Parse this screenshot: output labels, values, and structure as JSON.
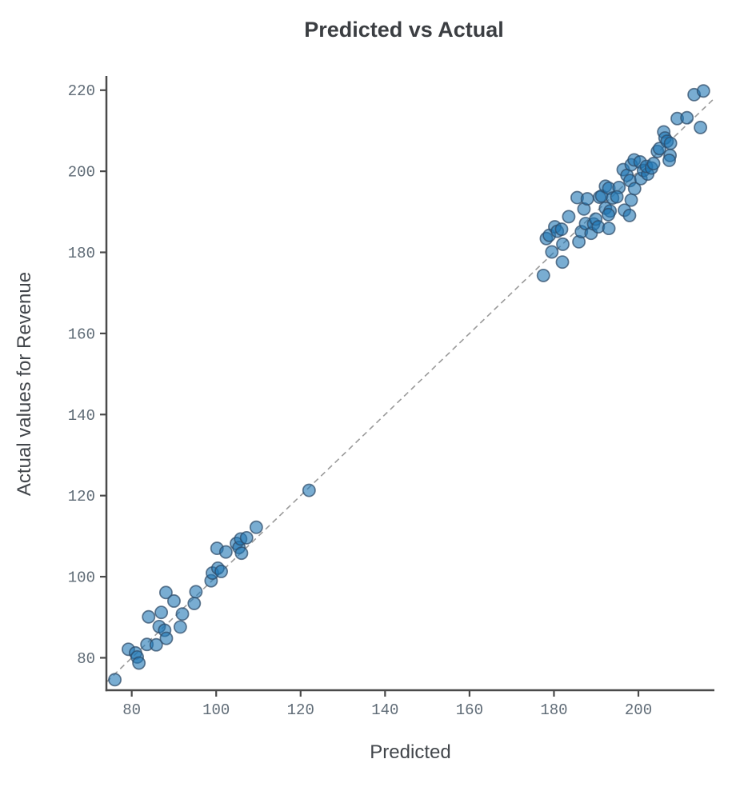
{
  "chart_data": {
    "type": "scatter",
    "title": "Predicted vs Actual",
    "xlabel": "Predicted",
    "ylabel": "Actual values for Revenue",
    "xlim": [
      74,
      218
    ],
    "ylim": [
      72,
      223.5
    ],
    "xticks": [
      80,
      100,
      120,
      140,
      160,
      180,
      200
    ],
    "yticks": [
      80,
      100,
      120,
      140,
      160,
      180,
      200,
      220
    ],
    "grid": false,
    "legend_position": "none",
    "identity_line": {
      "x1": 74,
      "y1": 74,
      "x2": 217.6,
      "y2": 217.6,
      "style": "dashed"
    },
    "points": [
      [
        76.0,
        74.6
      ],
      [
        79.2,
        82.1
      ],
      [
        80.9,
        81.2
      ],
      [
        81.3,
        80.2
      ],
      [
        81.7,
        78.7
      ],
      [
        83.6,
        83.3
      ],
      [
        84.0,
        90.1
      ],
      [
        85.8,
        83.2
      ],
      [
        86.5,
        87.7
      ],
      [
        87.8,
        86.8
      ],
      [
        87.0,
        91.2
      ],
      [
        88.2,
        84.8
      ],
      [
        88.1,
        96.1
      ],
      [
        90.0,
        94.0
      ],
      [
        91.5,
        87.6
      ],
      [
        92.0,
        90.8
      ],
      [
        94.8,
        93.4
      ],
      [
        95.2,
        96.3
      ],
      [
        98.8,
        99.0
      ],
      [
        99.1,
        100.9
      ],
      [
        100.2,
        107.0
      ],
      [
        100.4,
        102.1
      ],
      [
        101.2,
        101.3
      ],
      [
        102.3,
        106.1
      ],
      [
        104.8,
        108.2
      ],
      [
        105.4,
        107.2
      ],
      [
        106.0,
        105.8
      ],
      [
        105.8,
        109.3
      ],
      [
        107.2,
        109.6
      ],
      [
        109.5,
        112.2
      ],
      [
        122.0,
        121.3
      ],
      [
        177.5,
        174.3
      ],
      [
        178.2,
        183.4
      ],
      [
        178.9,
        184.2
      ],
      [
        179.5,
        180.1
      ],
      [
        180.2,
        186.3
      ],
      [
        180.8,
        185.2
      ],
      [
        181.8,
        185.7
      ],
      [
        182.1,
        182.0
      ],
      [
        182.0,
        177.6
      ],
      [
        183.5,
        188.8
      ],
      [
        185.5,
        193.5
      ],
      [
        185.9,
        182.6
      ],
      [
        186.5,
        185.1
      ],
      [
        187.1,
        190.7
      ],
      [
        187.5,
        187.1
      ],
      [
        187.9,
        193.2
      ],
      [
        188.8,
        184.7
      ],
      [
        189.4,
        187.0
      ],
      [
        189.9,
        188.2
      ],
      [
        190.5,
        186.3
      ],
      [
        190.8,
        193.6
      ],
      [
        191.3,
        193.9
      ],
      [
        192.2,
        196.3
      ],
      [
        193.0,
        195.8
      ],
      [
        195.4,
        196.0
      ],
      [
        192.2,
        190.9
      ],
      [
        193.3,
        190.2
      ],
      [
        193.0,
        185.9
      ],
      [
        192.9,
        189.3
      ],
      [
        193.9,
        193.4
      ],
      [
        194.9,
        193.7
      ],
      [
        196.7,
        190.4
      ],
      [
        197.9,
        189.1
      ],
      [
        198.3,
        192.9
      ],
      [
        196.4,
        200.4
      ],
      [
        197.3,
        199.0
      ],
      [
        198.0,
        197.7
      ],
      [
        199.1,
        195.7
      ],
      [
        198.3,
        201.6
      ],
      [
        199.0,
        202.8
      ],
      [
        200.4,
        202.3
      ],
      [
        200.6,
        198.2
      ],
      [
        201.2,
        200.2
      ],
      [
        202.2,
        199.3
      ],
      [
        201.9,
        201.2
      ],
      [
        203.1,
        200.8
      ],
      [
        203.6,
        201.9
      ],
      [
        204.5,
        204.9
      ],
      [
        205.0,
        205.6
      ],
      [
        206.0,
        209.7
      ],
      [
        206.3,
        208.2
      ],
      [
        206.8,
        207.4
      ],
      [
        207.6,
        206.9
      ],
      [
        207.5,
        203.9
      ],
      [
        207.3,
        202.7
      ],
      [
        209.2,
        213.0
      ],
      [
        211.5,
        213.2
      ],
      [
        213.2,
        218.9
      ],
      [
        214.7,
        210.8
      ],
      [
        215.4,
        219.8
      ]
    ]
  },
  "colors": {
    "point_fill": "#1f77b4",
    "point_edge": "#2d4a66",
    "identity_line": "#9a9a9a",
    "spine": "#4a4a4a",
    "tick": "#4a4a4a",
    "background": "#ffffff"
  },
  "point_style": {
    "radius": 7.6,
    "fill_opacity": 0.6,
    "stroke_opacity": 0.72,
    "stroke_width": 1.7
  }
}
